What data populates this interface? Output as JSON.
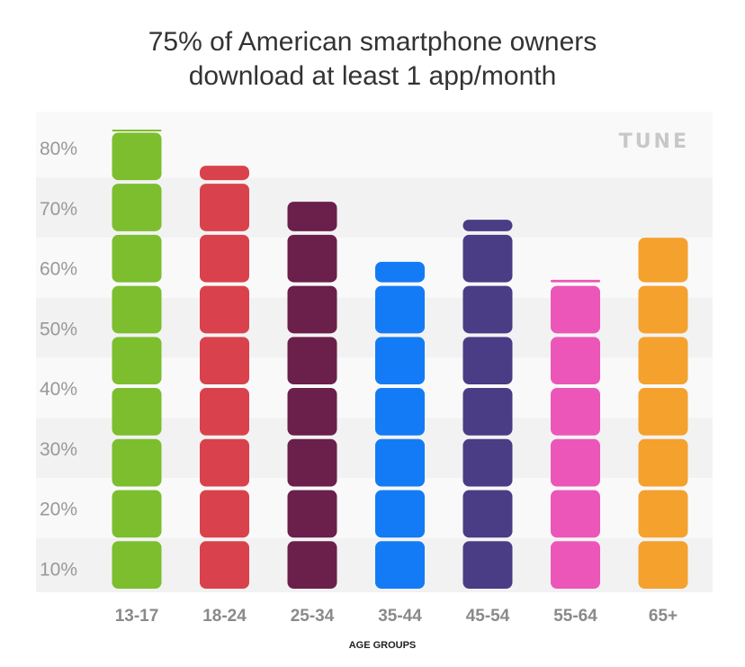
{
  "chart_data": {
    "type": "bar",
    "title_lines": [
      "75% of American smartphone owners",
      "download at least 1 app/month"
    ],
    "xlabel": "AGE GROUPS",
    "ylabel": "",
    "categories": [
      "13-17",
      "18-24",
      "25-34",
      "35-44",
      "45-54",
      "55-64",
      "65+"
    ],
    "values": [
      83,
      77,
      71,
      61,
      68,
      58,
      65
    ],
    "colors": [
      "#7CBE2E",
      "#D9424C",
      "#6B1F4B",
      "#137BF5",
      "#4A3C85",
      "#EC56B9",
      "#F4A12E"
    ],
    "ytick_labels": [
      "10%",
      "20%",
      "30%",
      "40%",
      "50%",
      "60%",
      "70%",
      "80%"
    ],
    "ytick_values": [
      10,
      20,
      30,
      40,
      50,
      60,
      70,
      80
    ],
    "ylim": [
      6,
      86
    ],
    "segment_size": 8.5,
    "background_bands": true,
    "legend": "none",
    "grid": false
  },
  "brand": {
    "logo_text": "TUNE",
    "logo_color": "#c8c8c8"
  },
  "colors": {
    "title": "#333333",
    "tick_label": "#999999",
    "category_label": "#8a8a8a",
    "band_light": "#f9f9f9",
    "band_dark": "#f2f2f2"
  }
}
